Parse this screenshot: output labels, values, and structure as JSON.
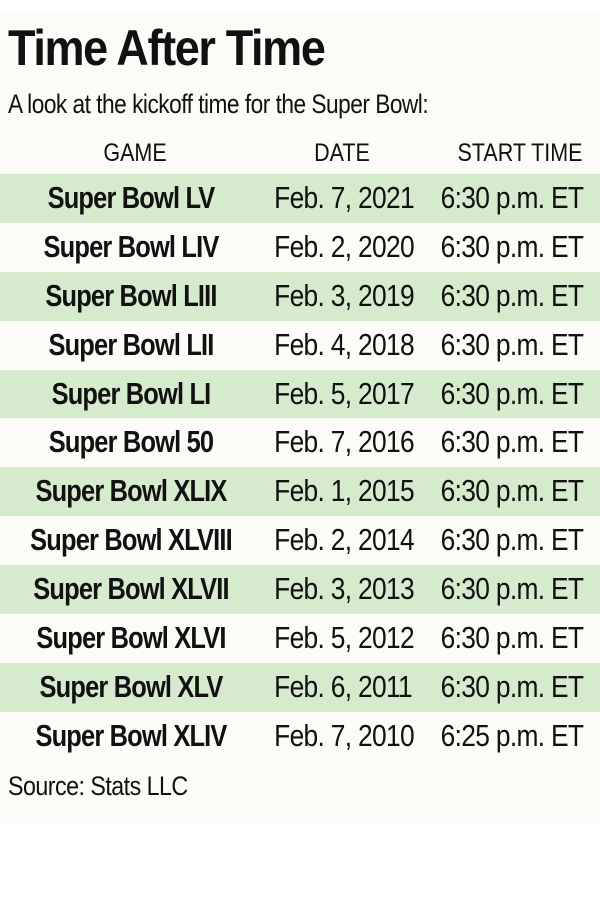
{
  "title": "Time After Time",
  "subtitle": "A look at the kickoff time for the Super Bowl:",
  "columns": {
    "game": "GAME",
    "date": "DATE",
    "start_time": "START TIME"
  },
  "rows": [
    {
      "game": "Super Bowl LV",
      "date": "Feb. 7, 2021",
      "start_time": "6:30 p.m. ET"
    },
    {
      "game": "Super Bowl LIV",
      "date": "Feb. 2, 2020",
      "start_time": "6:30 p.m. ET"
    },
    {
      "game": "Super Bowl LIII",
      "date": "Feb. 3, 2019",
      "start_time": "6:30 p.m. ET"
    },
    {
      "game": "Super Bowl LII",
      "date": "Feb. 4, 2018",
      "start_time": "6:30 p.m. ET"
    },
    {
      "game": "Super Bowl LI",
      "date": "Feb. 5, 2017",
      "start_time": "6:30 p.m. ET"
    },
    {
      "game": "Super Bowl 50",
      "date": "Feb. 7, 2016",
      "start_time": "6:30 p.m. ET"
    },
    {
      "game": "Super Bowl XLIX",
      "date": "Feb. 1, 2015",
      "start_time": "6:30 p.m. ET"
    },
    {
      "game": "Super Bowl XLVIII",
      "date": "Feb. 2, 2014",
      "start_time": "6:30 p.m. ET"
    },
    {
      "game": "Super Bowl XLVII",
      "date": "Feb. 3, 2013",
      "start_time": "6:30 p.m. ET"
    },
    {
      "game": "Super Bowl XLVI",
      "date": "Feb. 5, 2012",
      "start_time": "6:30 p.m. ET"
    },
    {
      "game": "Super Bowl XLV",
      "date": "Feb. 6, 2011",
      "start_time": "6:30 p.m. ET"
    },
    {
      "game": "Super Bowl XLIV",
      "date": "Feb. 7, 2010",
      "start_time": "6:25 p.m. ET"
    }
  ],
  "source": "Source: Stats LLC",
  "colors": {
    "row_shade": "#d6ebce",
    "background": "#fdfbf7",
    "text": "#111111"
  }
}
